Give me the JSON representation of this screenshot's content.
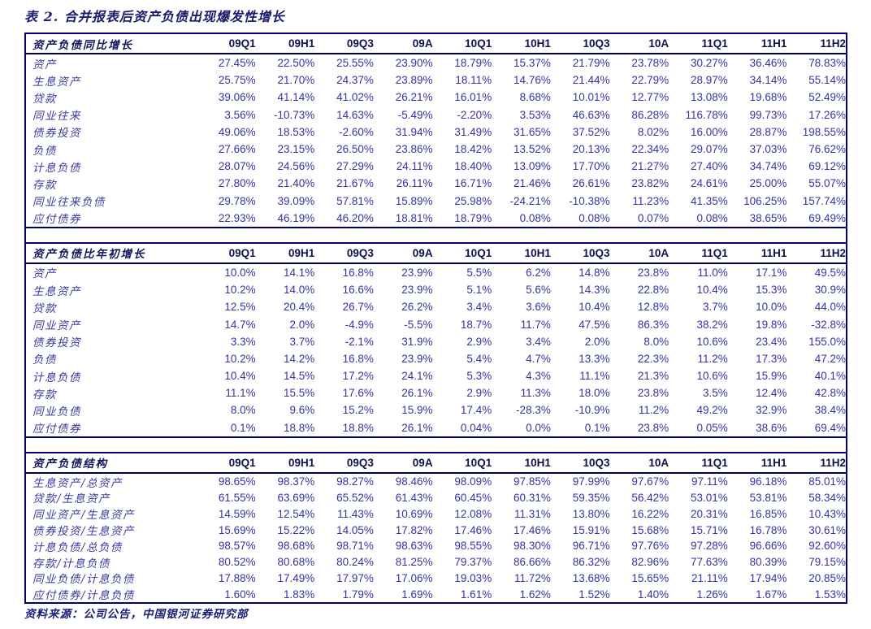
{
  "title": "表 2. 合并报表后资产负债出现爆发性增长",
  "source": "资料来源：公司公告，中国银河证券研究部",
  "accent_colors": {
    "border_navy": "#00006e",
    "header_text": "#14145c",
    "value_text": "#3434a2"
  },
  "columns": [
    "09Q1",
    "09H1",
    "09Q3",
    "09A",
    "10Q1",
    "10H1",
    "10Q3",
    "10A",
    "11Q1",
    "11H1",
    "11H2"
  ],
  "tables": [
    {
      "name": "资产负债同比增长",
      "rows": [
        {
          "label": "资产",
          "values": [
            "27.45%",
            "22.50%",
            "25.55%",
            "23.90%",
            "18.79%",
            "15.37%",
            "21.79%",
            "23.78%",
            "30.27%",
            "36.46%",
            "78.83%"
          ]
        },
        {
          "label": "生息资产",
          "values": [
            "25.75%",
            "21.70%",
            "24.37%",
            "23.89%",
            "18.11%",
            "14.76%",
            "21.44%",
            "22.79%",
            "28.97%",
            "34.14%",
            "55.14%"
          ]
        },
        {
          "label": "贷款",
          "values": [
            "39.06%",
            "41.14%",
            "41.02%",
            "26.21%",
            "16.01%",
            "8.68%",
            "10.01%",
            "12.77%",
            "13.08%",
            "19.68%",
            "52.49%"
          ]
        },
        {
          "label": "同业往来",
          "values": [
            "3.56%",
            "-10.73%",
            "14.63%",
            "-5.49%",
            "-2.20%",
            "3.53%",
            "46.63%",
            "86.28%",
            "116.78%",
            "99.73%",
            "17.26%"
          ]
        },
        {
          "label": "债券投资",
          "values": [
            "49.06%",
            "18.53%",
            "-2.60%",
            "31.94%",
            "31.49%",
            "31.65%",
            "37.52%",
            "8.02%",
            "16.00%",
            "28.87%",
            "198.55%"
          ]
        },
        {
          "label": "负债",
          "values": [
            "27.66%",
            "23.15%",
            "26.50%",
            "23.86%",
            "18.42%",
            "13.52%",
            "20.13%",
            "22.34%",
            "29.07%",
            "37.03%",
            "76.62%"
          ]
        },
        {
          "label": "计息负债",
          "values": [
            "28.07%",
            "24.56%",
            "27.29%",
            "24.11%",
            "18.40%",
            "13.09%",
            "17.70%",
            "21.27%",
            "27.40%",
            "34.74%",
            "69.12%"
          ]
        },
        {
          "label": "存款",
          "values": [
            "27.80%",
            "21.40%",
            "21.67%",
            "26.11%",
            "16.71%",
            "21.46%",
            "26.61%",
            "23.82%",
            "24.61%",
            "25.00%",
            "55.07%"
          ]
        },
        {
          "label": "同业往来负债",
          "values": [
            "29.78%",
            "39.09%",
            "57.81%",
            "15.89%",
            "25.98%",
            "-24.21%",
            "-10.38%",
            "11.23%",
            "41.35%",
            "106.25%",
            "157.74%"
          ]
        },
        {
          "label": "应付债券",
          "values": [
            "22.93%",
            "46.19%",
            "46.20%",
            "18.81%",
            "18.79%",
            "0.08%",
            "0.08%",
            "0.07%",
            "0.08%",
            "38.65%",
            "69.49%"
          ]
        }
      ]
    },
    {
      "name": "资产负债比年初增长",
      "rows": [
        {
          "label": "资产",
          "values": [
            "10.0%",
            "14.1%",
            "16.8%",
            "23.9%",
            "5.5%",
            "6.2%",
            "14.8%",
            "23.8%",
            "11.0%",
            "17.1%",
            "49.5%"
          ]
        },
        {
          "label": "生息资产",
          "values": [
            "10.2%",
            "14.0%",
            "16.6%",
            "23.9%",
            "5.1%",
            "5.6%",
            "14.3%",
            "22.8%",
            "10.4%",
            "15.3%",
            "30.9%"
          ]
        },
        {
          "label": "贷款",
          "values": [
            "12.5%",
            "20.4%",
            "26.7%",
            "26.2%",
            "3.4%",
            "3.6%",
            "10.4%",
            "12.8%",
            "3.7%",
            "10.0%",
            "44.0%"
          ]
        },
        {
          "label": "同业资产",
          "values": [
            "14.7%",
            "2.0%",
            "-4.9%",
            "-5.5%",
            "18.7%",
            "11.7%",
            "47.5%",
            "86.3%",
            "38.2%",
            "19.8%",
            "-32.8%"
          ]
        },
        {
          "label": "债券投资",
          "values": [
            "3.3%",
            "3.7%",
            "-2.1%",
            "31.9%",
            "2.9%",
            "3.4%",
            "2.0%",
            "8.0%",
            "10.6%",
            "23.4%",
            "155.0%"
          ]
        },
        {
          "label": "负债",
          "values": [
            "10.2%",
            "14.2%",
            "16.8%",
            "23.9%",
            "5.4%",
            "4.7%",
            "13.3%",
            "22.3%",
            "11.2%",
            "17.3%",
            "47.2%"
          ]
        },
        {
          "label": "计息负债",
          "values": [
            "10.4%",
            "14.5%",
            "17.2%",
            "24.1%",
            "5.3%",
            "4.3%",
            "11.1%",
            "21.3%",
            "10.6%",
            "15.9%",
            "40.1%"
          ]
        },
        {
          "label": "存款",
          "values": [
            "11.1%",
            "15.5%",
            "17.6%",
            "26.1%",
            "2.9%",
            "11.3%",
            "18.0%",
            "23.8%",
            "3.5%",
            "12.4%",
            "42.8%"
          ]
        },
        {
          "label": "同业负债",
          "values": [
            "8.0%",
            "9.6%",
            "15.2%",
            "15.9%",
            "17.4%",
            "-28.3%",
            "-10.9%",
            "11.2%",
            "49.2%",
            "32.9%",
            "38.4%"
          ]
        },
        {
          "label": "应付债券",
          "values": [
            "0.1%",
            "18.8%",
            "18.8%",
            "26.1%",
            "0.04%",
            "0.0%",
            "0.1%",
            "23.8%",
            "0.05%",
            "38.6%",
            "69.4%"
          ]
        }
      ]
    },
    {
      "name": "资产负债结构",
      "rows": [
        {
          "label": "生息资产/总资产",
          "values": [
            "98.65%",
            "98.37%",
            "98.27%",
            "98.46%",
            "98.09%",
            "97.85%",
            "97.99%",
            "97.67%",
            "97.11%",
            "96.18%",
            "85.01%"
          ]
        },
        {
          "label": "贷款/生息资产",
          "values": [
            "61.55%",
            "63.69%",
            "65.52%",
            "61.43%",
            "60.45%",
            "60.31%",
            "59.35%",
            "56.42%",
            "53.01%",
            "53.81%",
            "58.34%"
          ]
        },
        {
          "label": "同业资产/生息资产",
          "values": [
            "14.59%",
            "12.54%",
            "11.43%",
            "10.69%",
            "12.08%",
            "11.31%",
            "13.80%",
            "16.22%",
            "20.31%",
            "16.85%",
            "10.43%"
          ]
        },
        {
          "label": "债券投资/生息资产",
          "values": [
            "15.69%",
            "15.22%",
            "14.05%",
            "17.82%",
            "17.46%",
            "17.46%",
            "15.91%",
            "15.68%",
            "15.71%",
            "16.78%",
            "30.61%"
          ]
        },
        {
          "label": "计息负债/总负债",
          "values": [
            "98.57%",
            "98.68%",
            "98.71%",
            "98.63%",
            "98.55%",
            "98.30%",
            "96.71%",
            "97.76%",
            "97.28%",
            "96.66%",
            "92.60%"
          ]
        },
        {
          "label": "存款/计息负债",
          "values": [
            "80.52%",
            "80.68%",
            "80.24%",
            "81.25%",
            "79.37%",
            "86.66%",
            "86.32%",
            "82.96%",
            "77.63%",
            "80.39%",
            "79.15%"
          ]
        },
        {
          "label": "同业负债/计息负债",
          "values": [
            "17.88%",
            "17.49%",
            "17.97%",
            "17.06%",
            "19.03%",
            "11.72%",
            "13.68%",
            "15.65%",
            "21.11%",
            "17.94%",
            "20.85%"
          ]
        },
        {
          "label": "应付债券/计息负债",
          "values": [
            "1.60%",
            "1.83%",
            "1.79%",
            "1.69%",
            "1.61%",
            "1.62%",
            "1.52%",
            "1.40%",
            "1.26%",
            "1.67%",
            "1.53%"
          ]
        }
      ]
    }
  ]
}
